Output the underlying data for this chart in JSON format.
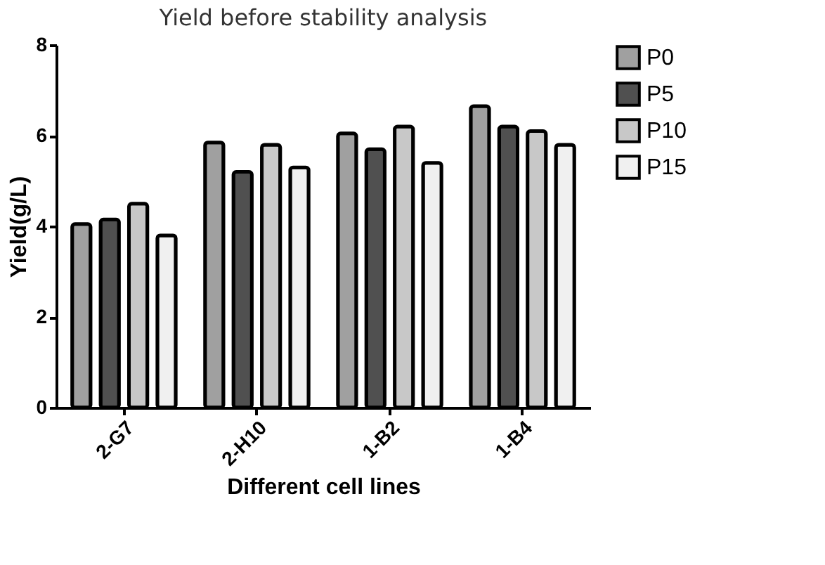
{
  "chart_data": {
    "type": "bar",
    "title": "Yield before stability analysis",
    "xlabel": "Different cell lines",
    "ylabel": "Yield(g/L)",
    "categories": [
      "2-G7",
      "2-H10",
      "1-B2",
      "1-B4"
    ],
    "series": [
      {
        "name": "P0",
        "color": "#a0a0a0",
        "values": [
          4.05,
          5.85,
          6.05,
          6.65
        ]
      },
      {
        "name": "P5",
        "color": "#505050",
        "values": [
          4.15,
          5.2,
          5.7,
          6.2
        ]
      },
      {
        "name": "P10",
        "color": "#c8c8c8",
        "values": [
          4.5,
          5.8,
          6.2,
          6.1
        ]
      },
      {
        "name": "P15",
        "color": "#f0f0f0",
        "values": [
          3.8,
          5.3,
          5.4,
          5.8
        ]
      }
    ],
    "ylim": [
      0,
      8
    ],
    "yticks": [
      0,
      2,
      4,
      6,
      8
    ],
    "grid": false,
    "legend": "right"
  }
}
